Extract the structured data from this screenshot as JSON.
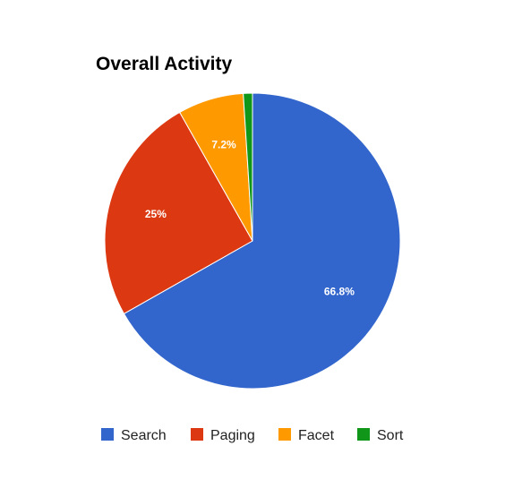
{
  "chart_data": {
    "type": "pie",
    "title": "Overall Activity",
    "categories": [
      "Search",
      "Paging",
      "Facet",
      "Sort"
    ],
    "values": [
      66.8,
      25,
      7.2,
      1.0
    ],
    "data_labels": [
      "66.8%",
      "25%",
      "7.2%",
      ""
    ],
    "colors": [
      "#3366cc",
      "#dc3912",
      "#ff9900",
      "#109618"
    ],
    "legend_position": "bottom"
  }
}
